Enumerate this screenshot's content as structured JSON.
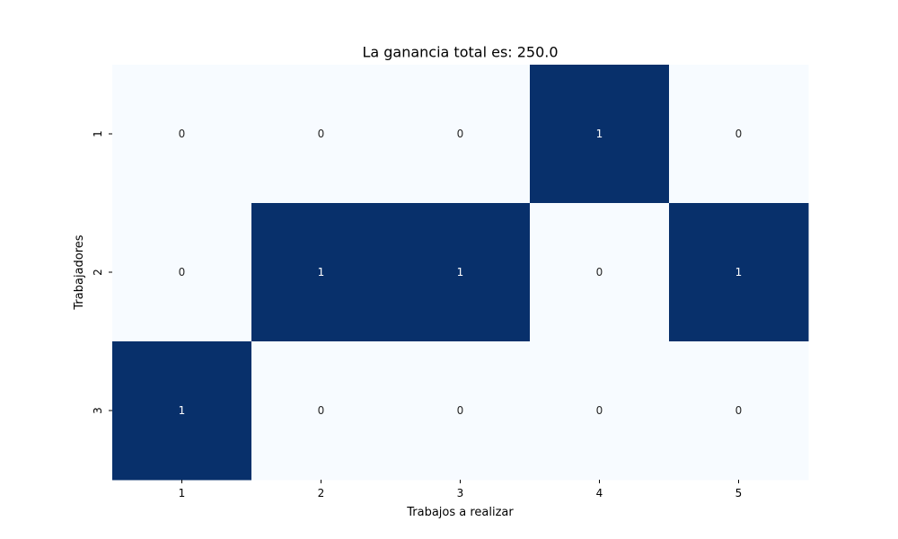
{
  "chart_data": {
    "type": "heatmap",
    "title": "La ganancia total es: 250.0",
    "xlabel": "Trabajos a realizar",
    "ylabel": "Trabajadores",
    "x_categories": [
      "1",
      "2",
      "3",
      "4",
      "5"
    ],
    "y_categories": [
      "1",
      "2",
      "3"
    ],
    "values": [
      [
        0,
        0,
        0,
        1,
        0
      ],
      [
        0,
        1,
        1,
        0,
        1
      ],
      [
        1,
        0,
        0,
        0,
        0
      ]
    ],
    "value_range": [
      0,
      1
    ],
    "colormap": {
      "low": "#f7fbff",
      "high": "#08306b"
    },
    "annotation_colors": {
      "on_low": "#262626",
      "on_high": "#ffffff"
    },
    "colorbar": false,
    "grid": false
  }
}
